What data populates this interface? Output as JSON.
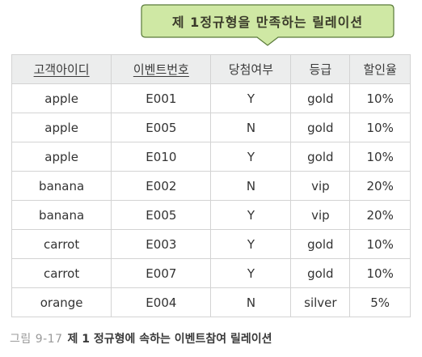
{
  "callout": {
    "text": "제 1정규형을 만족하는 릴레이션",
    "fill": "#cfe8a4",
    "border": "#5a7a3a"
  },
  "table": {
    "headers": [
      {
        "label": "고객아이디",
        "primary_key": true
      },
      {
        "label": "이벤트번호",
        "primary_key": true
      },
      {
        "label": "당첨여부",
        "primary_key": false
      },
      {
        "label": "등급",
        "primary_key": false
      },
      {
        "label": "할인율",
        "primary_key": false
      }
    ],
    "rows": [
      [
        "apple",
        "E001",
        "Y",
        "gold",
        "10%"
      ],
      [
        "apple",
        "E005",
        "N",
        "gold",
        "10%"
      ],
      [
        "apple",
        "E010",
        "Y",
        "gold",
        "10%"
      ],
      [
        "banana",
        "E002",
        "N",
        "vip",
        "20%"
      ],
      [
        "banana",
        "E005",
        "Y",
        "vip",
        "20%"
      ],
      [
        "carrot",
        "E003",
        "Y",
        "gold",
        "10%"
      ],
      [
        "carrot",
        "E007",
        "Y",
        "gold",
        "10%"
      ],
      [
        "orange",
        "E004",
        "N",
        "silver",
        "5%"
      ]
    ]
  },
  "caption": {
    "figure_number": "그림 9-17",
    "text": "제 1 정규형에 속하는 이벤트참여 릴레이션"
  }
}
